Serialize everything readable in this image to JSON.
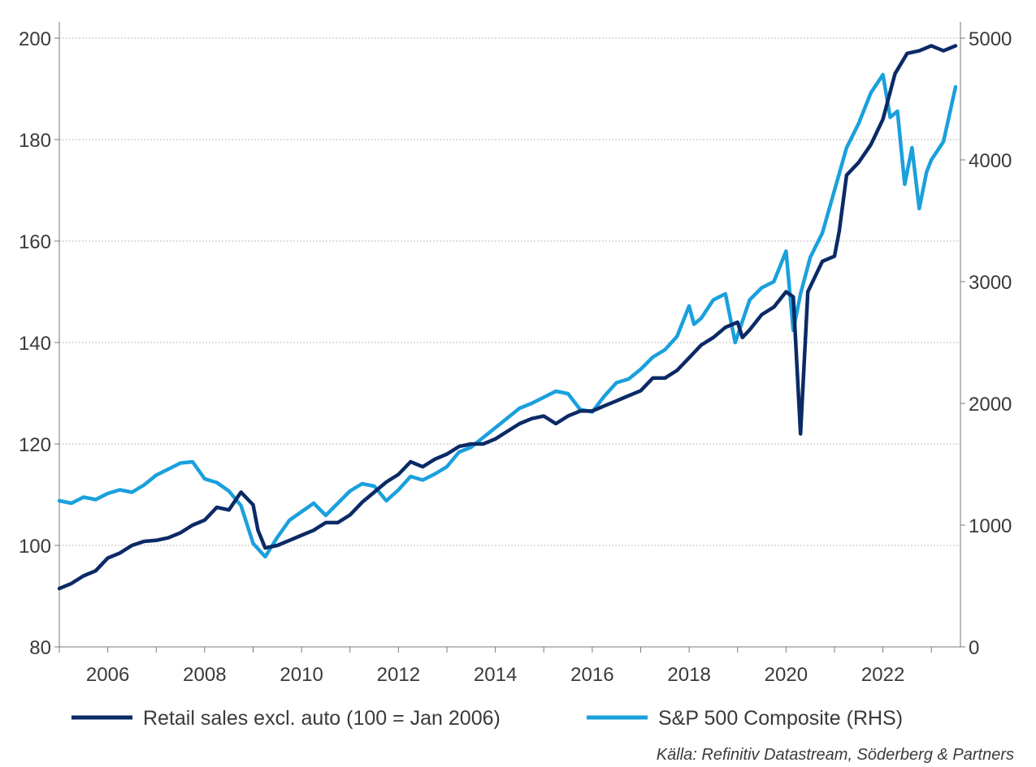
{
  "chart_data": {
    "type": "line",
    "title": "",
    "legend_position": "bottom",
    "grid": true,
    "x_range": [
      2005.0,
      2023.6
    ],
    "x_ticks": [
      "2006",
      "2008",
      "2010",
      "2012",
      "2014",
      "2016",
      "2018",
      "2020",
      "2022"
    ],
    "left_axis": {
      "ylim": [
        80,
        200
      ],
      "ticks": [
        "80",
        "100",
        "120",
        "140",
        "160",
        "180",
        "200"
      ]
    },
    "right_axis": {
      "ylim": [
        0,
        5000
      ],
      "ticks": [
        "0",
        "1000",
        "2000",
        "3000",
        "4000",
        "5000"
      ]
    },
    "series": [
      {
        "name": "Retail sales excl. auto (100 = Jan 2006)",
        "axis": "left",
        "color": "#0b2a66",
        "points": [
          [
            2005.0,
            91.5
          ],
          [
            2005.25,
            92.5
          ],
          [
            2005.5,
            94
          ],
          [
            2005.75,
            95
          ],
          [
            2006.0,
            97.5
          ],
          [
            2006.25,
            98.5
          ],
          [
            2006.5,
            100
          ],
          [
            2006.75,
            100.8
          ],
          [
            2007.0,
            101
          ],
          [
            2007.25,
            101.5
          ],
          [
            2007.5,
            102.5
          ],
          [
            2007.75,
            104
          ],
          [
            2008.0,
            105
          ],
          [
            2008.25,
            107.5
          ],
          [
            2008.5,
            107
          ],
          [
            2008.75,
            110.5
          ],
          [
            2009.0,
            108
          ],
          [
            2009.1,
            103
          ],
          [
            2009.25,
            99.5
          ],
          [
            2009.5,
            100
          ],
          [
            2009.75,
            101
          ],
          [
            2010.0,
            102
          ],
          [
            2010.25,
            103
          ],
          [
            2010.5,
            104.5
          ],
          [
            2010.75,
            104.5
          ],
          [
            2011.0,
            106
          ],
          [
            2011.25,
            108.5
          ],
          [
            2011.5,
            110.5
          ],
          [
            2011.75,
            112.5
          ],
          [
            2012.0,
            114
          ],
          [
            2012.25,
            116.5
          ],
          [
            2012.5,
            115.5
          ],
          [
            2012.75,
            117
          ],
          [
            2013.0,
            118
          ],
          [
            2013.25,
            119.5
          ],
          [
            2013.5,
            120
          ],
          [
            2013.75,
            120
          ],
          [
            2014.0,
            121
          ],
          [
            2014.25,
            122.5
          ],
          [
            2014.5,
            124
          ],
          [
            2014.75,
            125
          ],
          [
            2015.0,
            125.5
          ],
          [
            2015.25,
            124
          ],
          [
            2015.5,
            125.5
          ],
          [
            2015.75,
            126.5
          ],
          [
            2016.0,
            126.5
          ],
          [
            2016.25,
            127.5
          ],
          [
            2016.5,
            128.5
          ],
          [
            2016.75,
            129.5
          ],
          [
            2017.0,
            130.5
          ],
          [
            2017.25,
            133
          ],
          [
            2017.5,
            133
          ],
          [
            2017.75,
            134.5
          ],
          [
            2018.0,
            137
          ],
          [
            2018.25,
            139.5
          ],
          [
            2018.5,
            141
          ],
          [
            2018.75,
            143
          ],
          [
            2019.0,
            144
          ],
          [
            2019.1,
            141
          ],
          [
            2019.25,
            142.5
          ],
          [
            2019.5,
            145.5
          ],
          [
            2019.75,
            147
          ],
          [
            2020.0,
            150
          ],
          [
            2020.15,
            149
          ],
          [
            2020.3,
            122
          ],
          [
            2020.45,
            150
          ],
          [
            2020.6,
            153
          ],
          [
            2020.75,
            156
          ],
          [
            2021.0,
            157
          ],
          [
            2021.1,
            162
          ],
          [
            2021.25,
            173
          ],
          [
            2021.5,
            175.5
          ],
          [
            2021.75,
            179
          ],
          [
            2022.0,
            184
          ],
          [
            2022.25,
            193
          ],
          [
            2022.5,
            197
          ],
          [
            2022.75,
            197.5
          ],
          [
            2023.0,
            198.5
          ],
          [
            2023.25,
            197.5
          ],
          [
            2023.5,
            198.5
          ]
        ]
      },
      {
        "name": "S&P 500 Composite (RHS)",
        "axis": "right",
        "color": "#1aa0dd",
        "points": [
          [
            2005.0,
            1200
          ],
          [
            2005.25,
            1180
          ],
          [
            2005.5,
            1230
          ],
          [
            2005.75,
            1210
          ],
          [
            2006.0,
            1260
          ],
          [
            2006.25,
            1290
          ],
          [
            2006.5,
            1270
          ],
          [
            2006.75,
            1330
          ],
          [
            2007.0,
            1410
          ],
          [
            2007.25,
            1460
          ],
          [
            2007.5,
            1510
          ],
          [
            2007.75,
            1520
          ],
          [
            2008.0,
            1380
          ],
          [
            2008.25,
            1350
          ],
          [
            2008.5,
            1280
          ],
          [
            2008.75,
            1160
          ],
          [
            2009.0,
            850
          ],
          [
            2009.25,
            740
          ],
          [
            2009.5,
            900
          ],
          [
            2009.75,
            1040
          ],
          [
            2010.0,
            1110
          ],
          [
            2010.25,
            1180
          ],
          [
            2010.5,
            1080
          ],
          [
            2010.75,
            1180
          ],
          [
            2011.0,
            1280
          ],
          [
            2011.25,
            1340
          ],
          [
            2011.5,
            1320
          ],
          [
            2011.75,
            1200
          ],
          [
            2012.0,
            1290
          ],
          [
            2012.25,
            1400
          ],
          [
            2012.5,
            1370
          ],
          [
            2012.75,
            1420
          ],
          [
            2013.0,
            1480
          ],
          [
            2013.25,
            1600
          ],
          [
            2013.5,
            1640
          ],
          [
            2013.75,
            1720
          ],
          [
            2014.0,
            1800
          ],
          [
            2014.25,
            1880
          ],
          [
            2014.5,
            1960
          ],
          [
            2014.75,
            2000
          ],
          [
            2015.0,
            2050
          ],
          [
            2015.25,
            2100
          ],
          [
            2015.5,
            2080
          ],
          [
            2015.75,
            1950
          ],
          [
            2016.0,
            1930
          ],
          [
            2016.25,
            2060
          ],
          [
            2016.5,
            2170
          ],
          [
            2016.75,
            2200
          ],
          [
            2017.0,
            2280
          ],
          [
            2017.25,
            2380
          ],
          [
            2017.5,
            2440
          ],
          [
            2017.75,
            2550
          ],
          [
            2018.0,
            2800
          ],
          [
            2018.1,
            2650
          ],
          [
            2018.25,
            2700
          ],
          [
            2018.5,
            2850
          ],
          [
            2018.75,
            2900
          ],
          [
            2018.95,
            2500
          ],
          [
            2019.25,
            2850
          ],
          [
            2019.5,
            2950
          ],
          [
            2019.75,
            3000
          ],
          [
            2020.0,
            3250
          ],
          [
            2020.15,
            2600
          ],
          [
            2020.3,
            2900
          ],
          [
            2020.5,
            3200
          ],
          [
            2020.75,
            3400
          ],
          [
            2021.0,
            3750
          ],
          [
            2021.25,
            4100
          ],
          [
            2021.5,
            4300
          ],
          [
            2021.75,
            4550
          ],
          [
            2022.0,
            4700
          ],
          [
            2022.15,
            4350
          ],
          [
            2022.3,
            4400
          ],
          [
            2022.45,
            3800
          ],
          [
            2022.6,
            4100
          ],
          [
            2022.75,
            3600
          ],
          [
            2022.9,
            3900
          ],
          [
            2023.0,
            4000
          ],
          [
            2023.25,
            4150
          ],
          [
            2023.5,
            4600
          ]
        ]
      }
    ],
    "source": "Källa: Refinitiv Datastream, Söderberg & Partners"
  }
}
